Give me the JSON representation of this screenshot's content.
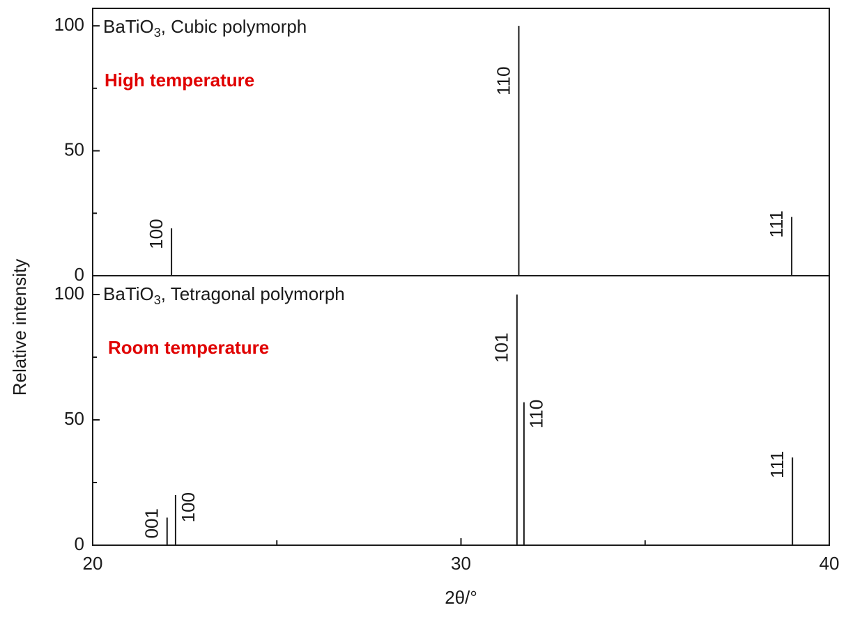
{
  "chart_data": [
    {
      "type": "stick",
      "title": [
        "BaTiO",
        "3",
        ", Cubic polymorph"
      ],
      "annotation": "High temperature",
      "annotation_color": "#e00000",
      "ylabel": "Relative intensity",
      "color": "#000000",
      "x": [
        22.14,
        31.57,
        38.98
      ],
      "values": [
        19,
        100,
        23.5
      ],
      "peak_labels": [
        "100",
        "110",
        "111"
      ],
      "xlim": [
        20,
        40
      ],
      "ylim": [
        0,
        107
      ],
      "yticks": [
        0,
        50,
        100
      ],
      "yminor": [
        25,
        75
      ]
    },
    {
      "type": "stick",
      "title": [
        "BaTiO",
        "3",
        ", Tetragonal polymorph"
      ],
      "annotation": "Room temperature",
      "annotation_color": "#e00000",
      "xlabel": "2θ/°",
      "color": "#000000",
      "x": [
        22.02,
        22.25,
        31.52,
        31.71,
        39.0
      ],
      "values": [
        11,
        20,
        100,
        57,
        35
      ],
      "peak_labels": [
        "001",
        "100",
        "101",
        "110",
        "111"
      ],
      "xlim": [
        20,
        40
      ],
      "ylim": [
        0,
        107.5
      ],
      "yticks": [
        0,
        50,
        100
      ],
      "yminor": [
        25,
        75
      ],
      "xticks": [
        20,
        30,
        40
      ],
      "xminor": [
        25,
        35
      ]
    }
  ]
}
